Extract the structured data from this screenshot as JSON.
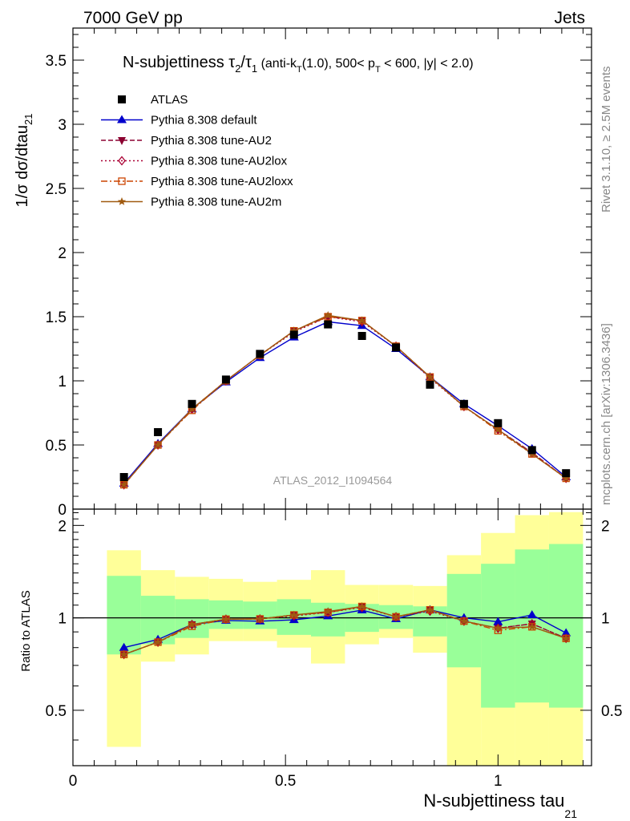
{
  "header": {
    "left": "7000 GeV pp",
    "right": "Jets"
  },
  "plot_title": {
    "main": "N-subjettiness τ",
    "sub2": "2",
    "slash": "/τ",
    "sub1": "1",
    "selection_a": " (anti-k",
    "selection_T": "T",
    "selection_b": "(1.0), 500< p",
    "selection_T2": "T",
    "selection_c": " < 600, |y| < 2.0)"
  },
  "side_labels": {
    "rivet": "Rivet 3.1.10, ≥ 2.5M events",
    "mcplots": "mcplots.cern.ch [arXiv:1306.3436]"
  },
  "analysis_id": "ATLAS_2012_I1094564",
  "axes": {
    "top_ylabel_main": "1/σ dσ/dtau",
    "top_ylabel_sub": "21",
    "bottom_ylabel": "Ratio to ATLAS",
    "xlabel_main": "N-subjettiness tau",
    "xlabel_sub": "21",
    "top_ylim": [
      0,
      3.75
    ],
    "top_yticks": [
      0,
      0.5,
      1,
      1.5,
      2,
      2.5,
      3,
      3.5
    ],
    "top_ytick_labels": [
      "0",
      "0.5",
      "1",
      "1.5",
      "2",
      "2.5",
      "3",
      "3.5"
    ],
    "ratio_ylim": [
      0.33,
      2.26
    ],
    "ratio_yticks": [
      0.5,
      1,
      2
    ],
    "ratio_ytick_labels": [
      "0.5",
      "1",
      "2"
    ],
    "xlim": [
      0,
      1.22
    ],
    "xticks": [
      0,
      0.5,
      1
    ],
    "xtick_labels": [
      "0",
      "0.5",
      "1"
    ]
  },
  "chart_data": {
    "type": "line",
    "x": [
      0.12,
      0.2,
      0.28,
      0.36,
      0.44,
      0.52,
      0.6,
      0.68,
      0.76,
      0.84,
      0.92,
      1.0,
      1.08,
      1.16
    ],
    "bin_edges": [
      0.08,
      0.16,
      0.24,
      0.32,
      0.4,
      0.48,
      0.56,
      0.64,
      0.72,
      0.8,
      0.88,
      0.96,
      1.04,
      1.12,
      1.2
    ],
    "atlas": [
      0.25,
      0.6,
      0.82,
      1.01,
      1.21,
      1.36,
      1.44,
      1.35,
      1.26,
      0.97,
      0.82,
      0.67,
      0.46,
      0.28
    ],
    "series": [
      {
        "name": "Pythia 8.308 default",
        "color": "#0000cc",
        "marker": "triangle",
        "dash": "",
        "values": [
          0.2,
          0.51,
          0.78,
          0.99,
          1.18,
          1.34,
          1.46,
          1.43,
          1.25,
          1.03,
          0.82,
          0.65,
          0.47,
          0.25
        ]
      },
      {
        "name": "Pythia 8.308 tune-AU2",
        "color": "#8b0030",
        "marker": "tri-down",
        "dash": "6,3",
        "values": [
          0.19,
          0.5,
          0.78,
          1.0,
          1.2,
          1.39,
          1.5,
          1.47,
          1.27,
          1.03,
          0.8,
          0.62,
          0.44,
          0.24
        ]
      },
      {
        "name": "Pythia 8.308 tune-AU2lox",
        "color": "#aa0033",
        "marker": "diamond",
        "dash": "2,3",
        "values": [
          0.19,
          0.5,
          0.78,
          1.0,
          1.2,
          1.38,
          1.5,
          1.46,
          1.27,
          1.02,
          0.8,
          0.62,
          0.44,
          0.24
        ]
      },
      {
        "name": "Pythia 8.308 tune-AU2loxx",
        "color": "#cc4400",
        "marker": "square-open",
        "dash": "8,3,2,3",
        "values": [
          0.19,
          0.5,
          0.77,
          1.0,
          1.2,
          1.39,
          1.5,
          1.47,
          1.27,
          1.03,
          0.8,
          0.61,
          0.43,
          0.24
        ]
      },
      {
        "name": "Pythia 8.308 tune-AU2m",
        "color": "#a05a10",
        "marker": "star",
        "dash": "",
        "values": [
          0.19,
          0.5,
          0.78,
          1.0,
          1.2,
          1.39,
          1.51,
          1.47,
          1.27,
          1.03,
          0.8,
          0.62,
          0.43,
          0.24
        ]
      }
    ],
    "legend": [
      {
        "name": "ATLAS",
        "color": "#000000",
        "marker": "square",
        "dash": "none"
      },
      {
        "name": "Pythia 8.308 default",
        "color": "#0000cc",
        "marker": "triangle",
        "dash": ""
      },
      {
        "name": "Pythia 8.308 tune-AU2",
        "color": "#8b0030",
        "marker": "tri-down",
        "dash": "6,3"
      },
      {
        "name": "Pythia 8.308 tune-AU2lox",
        "color": "#aa0033",
        "marker": "diamond",
        "dash": "2,3"
      },
      {
        "name": "Pythia 8.308 tune-AU2loxx",
        "color": "#cc4400",
        "marker": "square-open",
        "dash": "8,3,2,3"
      },
      {
        "name": "Pythia 8.308 tune-AU2m",
        "color": "#a05a10",
        "marker": "star",
        "dash": ""
      }
    ],
    "ratio_band_inner": [
      [
        0.76,
        1.37
      ],
      [
        0.82,
        1.18
      ],
      [
        0.86,
        1.15
      ],
      [
        0.92,
        1.14
      ],
      [
        0.92,
        1.13
      ],
      [
        0.88,
        1.15
      ],
      [
        0.87,
        1.12
      ],
      [
        0.9,
        1.11
      ],
      [
        0.92,
        1.1
      ],
      [
        0.87,
        1.09
      ],
      [
        0.69,
        1.39
      ],
      [
        0.51,
        1.5
      ],
      [
        0.53,
        1.67
      ],
      [
        0.51,
        1.74
      ]
    ],
    "ratio_band_outer": [
      [
        0.38,
        1.66
      ],
      [
        0.72,
        1.43
      ],
      [
        0.76,
        1.36
      ],
      [
        0.84,
        1.34
      ],
      [
        0.84,
        1.31
      ],
      [
        0.8,
        1.33
      ],
      [
        0.71,
        1.43
      ],
      [
        0.82,
        1.28
      ],
      [
        0.86,
        1.28
      ],
      [
        0.77,
        1.27
      ],
      [
        0.33,
        1.6
      ],
      [
        0.33,
        1.89
      ],
      [
        0.33,
        2.16
      ],
      [
        0.33,
        2.21
      ]
    ],
    "band_colors": {
      "inner": "#99ff99",
      "outer": "#ffff99"
    }
  }
}
